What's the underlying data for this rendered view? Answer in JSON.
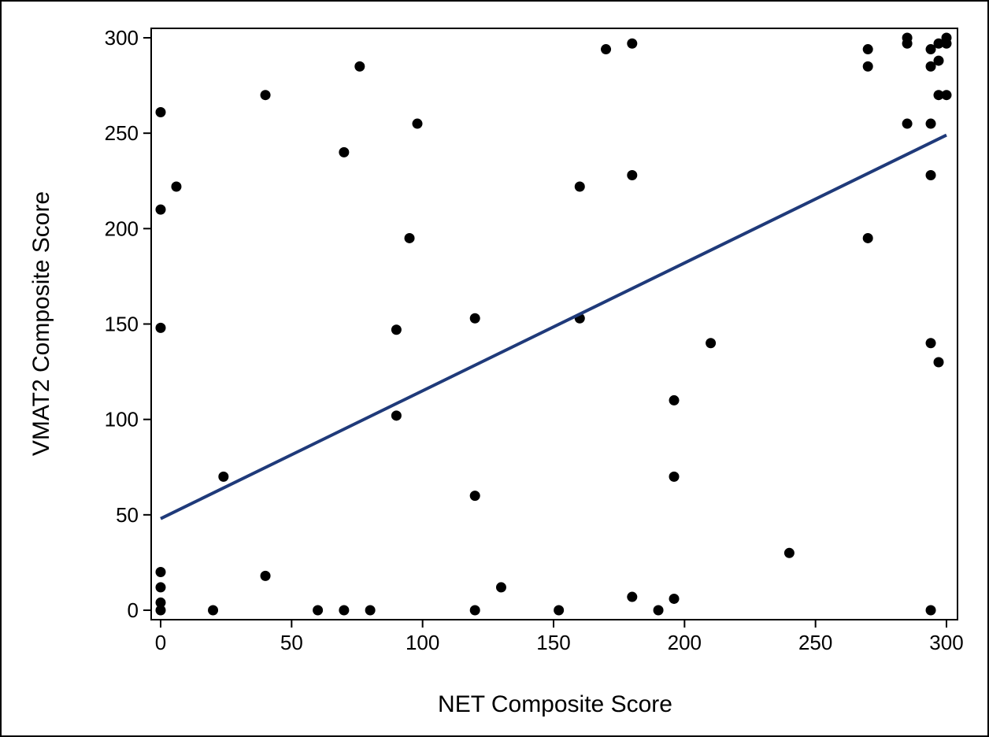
{
  "chart_data": {
    "type": "scatter",
    "title": "",
    "xlabel": "NET Composite Score",
    "ylabel": "VMAT2 Composite Score",
    "xlim": [
      0,
      300
    ],
    "ylim": [
      0,
      300
    ],
    "x_ticks": [
      0,
      50,
      100,
      150,
      200,
      250,
      300
    ],
    "y_ticks": [
      0,
      50,
      100,
      150,
      200,
      250,
      300
    ],
    "grid": false,
    "legend": "none",
    "colors": {
      "points": "#000000",
      "fit_line": "#1f3a7a",
      "frame": "#000000"
    },
    "series": [
      {
        "kind": "points",
        "points": [
          [
            0,
            261
          ],
          [
            0,
            210
          ],
          [
            0,
            148
          ],
          [
            0,
            20
          ],
          [
            0,
            12
          ],
          [
            0,
            4
          ],
          [
            0,
            0
          ],
          [
            6,
            222
          ],
          [
            20,
            0
          ],
          [
            24,
            70
          ],
          [
            40,
            270
          ],
          [
            40,
            18
          ],
          [
            60,
            0
          ],
          [
            70,
            240
          ],
          [
            70,
            0
          ],
          [
            76,
            285
          ],
          [
            80,
            0
          ],
          [
            90,
            147
          ],
          [
            90,
            102
          ],
          [
            95,
            195
          ],
          [
            98,
            255
          ],
          [
            120,
            153
          ],
          [
            120,
            60
          ],
          [
            120,
            0
          ],
          [
            130,
            12
          ],
          [
            152,
            0
          ],
          [
            160,
            222
          ],
          [
            160,
            153
          ],
          [
            170,
            294
          ],
          [
            180,
            297
          ],
          [
            180,
            228
          ],
          [
            180,
            7
          ],
          [
            190,
            0
          ],
          [
            196,
            110
          ],
          [
            196,
            70
          ],
          [
            196,
            6
          ],
          [
            210,
            140
          ],
          [
            240,
            30
          ],
          [
            270,
            294
          ],
          [
            270,
            285
          ],
          [
            270,
            195
          ],
          [
            285,
            300
          ],
          [
            285,
            297
          ],
          [
            285,
            255
          ],
          [
            294,
            294
          ],
          [
            294,
            285
          ],
          [
            294,
            255
          ],
          [
            294,
            228
          ],
          [
            294,
            140
          ],
          [
            294,
            0
          ],
          [
            297,
            297
          ],
          [
            297,
            288
          ],
          [
            297,
            270
          ],
          [
            297,
            130
          ],
          [
            300,
            300
          ],
          [
            300,
            297
          ],
          [
            300,
            270
          ]
        ]
      },
      {
        "kind": "fit_line",
        "x": [
          0,
          300
        ],
        "y": [
          48,
          249
        ]
      }
    ]
  }
}
